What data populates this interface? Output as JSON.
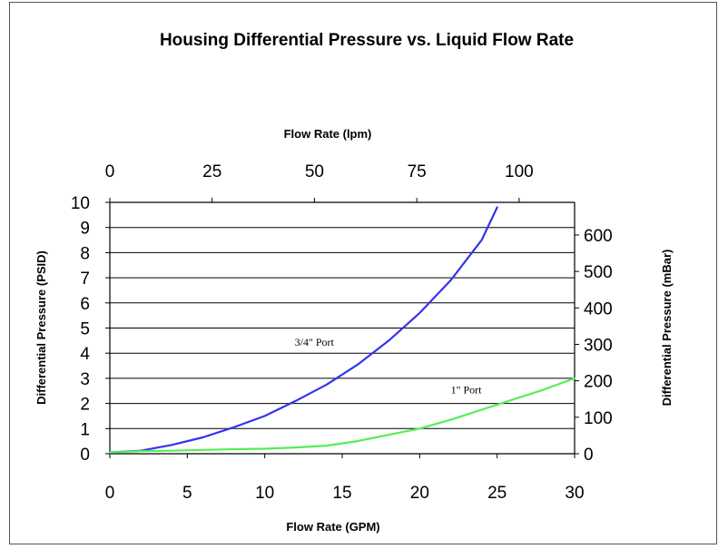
{
  "chart_data": {
    "type": "line",
    "title": "Housing Differential Pressure vs. Liquid Flow Rate",
    "xlabel": "Flow Rate (GPM)",
    "ylabel": "Differential Pressure (PSID)",
    "x2label": "Flow Rate (lpm)",
    "y2label": "Differential Pressure (mBar)",
    "xlim": [
      0,
      30
    ],
    "ylim": [
      0,
      10
    ],
    "x2lim": [
      0,
      113.56
    ],
    "y2lim": [
      0,
      689.5
    ],
    "xticks": [
      "0",
      "5",
      "10",
      "15",
      "20",
      "25",
      "30"
    ],
    "yticks": [
      "0",
      "1",
      "2",
      "3",
      "4",
      "5",
      "6",
      "7",
      "8",
      "9",
      "10"
    ],
    "x2ticks": [
      "0",
      "25",
      "50",
      "75",
      "100"
    ],
    "y2ticks": [
      "0",
      "100",
      "200",
      "300",
      "400",
      "500",
      "600"
    ],
    "grid": "horizontal",
    "series": [
      {
        "name": "3/4\" Port",
        "color": "#3333ee",
        "x": [
          0,
          2,
          4,
          6,
          8,
          10,
          12,
          14,
          16,
          18,
          20,
          22,
          24,
          25
        ],
        "y": [
          0.05,
          0.12,
          0.35,
          0.65,
          1.05,
          1.5,
          2.1,
          2.75,
          3.55,
          4.5,
          5.6,
          6.9,
          8.5,
          9.8
        ]
      },
      {
        "name": "1\" Port",
        "color": "#55ee55",
        "x": [
          0,
          2,
          4,
          6,
          8,
          10,
          12,
          14,
          16,
          18,
          20,
          22,
          24,
          26,
          28,
          30
        ],
        "y": [
          0.05,
          0.1,
          0.12,
          0.15,
          0.18,
          0.2,
          0.25,
          0.32,
          0.5,
          0.75,
          1.0,
          1.35,
          1.75,
          2.15,
          2.55,
          3.0
        ]
      }
    ],
    "annotations": [
      {
        "text": "3/4\" Port",
        "x": 13.2,
        "y": 4.3
      },
      {
        "text": "1\" Port",
        "x": 23.0,
        "y": 2.4
      }
    ]
  }
}
